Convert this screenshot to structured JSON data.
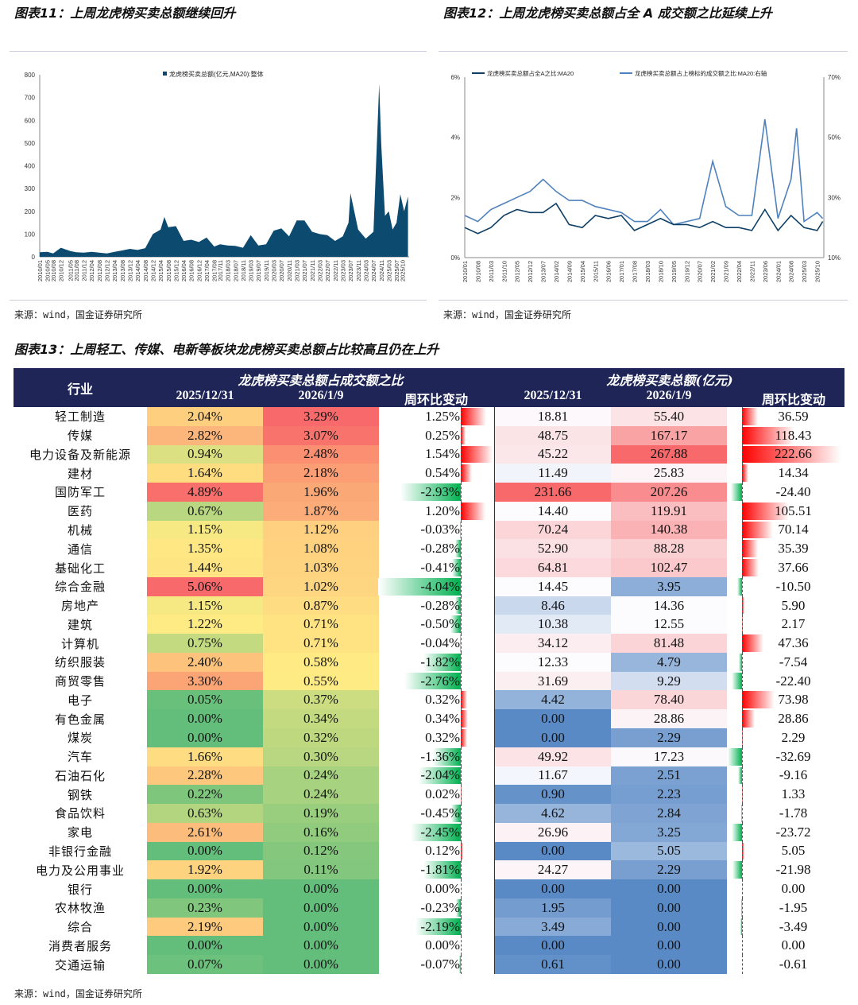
{
  "fig11": {
    "title": "图表11：上周龙虎榜买卖总额继续回升",
    "source": "来源：wind，国金证券研究所"
  },
  "fig12": {
    "title": "图表12：上周龙虎榜买卖总额占全 A 成交额之比延续上升",
    "source": "来源：wind，国金证券研究所"
  },
  "fig13": {
    "title": "图表13：上周轻工、传媒、电新等板块龙虎榜买卖总额占比较高且仍在上升",
    "source": "来源：wind，国金证券研究所"
  },
  "chart_data": [
    {
      "type": "area",
      "legend": "龙虎榜买卖总额(亿元,MA20):整体",
      "legend_position": "top-center",
      "color": "#0d4a70",
      "ylim": [
        0,
        800
      ],
      "yticks": [
        0,
        100,
        200,
        300,
        400,
        500,
        600,
        700,
        800
      ],
      "xticks": [
        "2010/01",
        "2010/05",
        "2010/08",
        "2010/12",
        "2011/05",
        "2011/08",
        "2011/12",
        "2012/04",
        "2012/08",
        "2012/12",
        "2013/04",
        "2013/08",
        "2013/12",
        "2014/04",
        "2014/08",
        "2014/12",
        "2015/04",
        "2015/08",
        "2015/12",
        "2016/04",
        "2016/08",
        "2016/12",
        "2017/04",
        "2017/08",
        "2017/11",
        "2018/03",
        "2018/07",
        "2018/11",
        "2019/03",
        "2019/07",
        "2019/11",
        "2020/03",
        "2020/07",
        "2020/11",
        "2021/03",
        "2021/07",
        "2021/11",
        "2022/03",
        "2022/07",
        "2022/11",
        "2023/03",
        "2023/07",
        "2023/11",
        "2024/03",
        "2024/07",
        "2024/11",
        "2025/03",
        "2025/07",
        "2025/10"
      ],
      "x": [
        "2010/01",
        "2010/05",
        "2010/08",
        "2010/12",
        "2011/05",
        "2011/08",
        "2011/12",
        "2012/04",
        "2012/08",
        "2012/12",
        "2013/04",
        "2013/08",
        "2013/12",
        "2014/04",
        "2014/08",
        "2014/12",
        "2015/04",
        "2015/06",
        "2015/08",
        "2015/12",
        "2016/04",
        "2016/08",
        "2016/12",
        "2017/04",
        "2017/08",
        "2017/11",
        "2018/03",
        "2018/07",
        "2018/11",
        "2019/03",
        "2019/07",
        "2019/11",
        "2020/03",
        "2020/07",
        "2020/11",
        "2021/03",
        "2021/07",
        "2021/11",
        "2022/03",
        "2022/07",
        "2022/11",
        "2023/03",
        "2023/06",
        "2023/07",
        "2023/11",
        "2024/03",
        "2024/07",
        "2024/10",
        "2024/11",
        "2025/01",
        "2025/03",
        "2025/05",
        "2025/07",
        "2025/09",
        "2025/11",
        "2026/01"
      ],
      "y": [
        20,
        22,
        15,
        40,
        25,
        20,
        18,
        22,
        18,
        15,
        22,
        28,
        35,
        30,
        38,
        100,
        120,
        175,
        130,
        135,
        70,
        75,
        65,
        85,
        45,
        55,
        50,
        48,
        40,
        95,
        50,
        55,
        115,
        125,
        90,
        160,
        160,
        110,
        100,
        95,
        70,
        90,
        150,
        280,
        120,
        80,
        110,
        760,
        500,
        180,
        200,
        120,
        150,
        275,
        200,
        265
      ]
    },
    {
      "type": "line",
      "legend_position": "top",
      "grid": false,
      "ylim_left": [
        0,
        6
      ],
      "yticks_left": [
        "0%",
        "2%",
        "4%",
        "6%"
      ],
      "ylim_right": [
        10,
        70
      ],
      "yticks_right": [
        "10%",
        "30%",
        "50%",
        "70%"
      ],
      "xticks": [
        "2010/01",
        "2010/08",
        "2011/03",
        "2011/10",
        "2012/05",
        "2012/12",
        "2013/07",
        "2014/02",
        "2014/09",
        "2015/04",
        "2015/11",
        "2016/06",
        "2017/01",
        "2017/08",
        "2018/03",
        "2018/10",
        "2019/05",
        "2019/12",
        "2020/07",
        "2021/02",
        "2021/09",
        "2022/04",
        "2022/11",
        "2023/06",
        "2024/01",
        "2024/08",
        "2025/03",
        "2025/10"
      ],
      "series": [
        {
          "name": "龙虎榜买卖总额占全A之比:MA20",
          "axis": "left",
          "color": "#0d3f66",
          "x": [
            "2010/01",
            "2010/08",
            "2011/03",
            "2011/10",
            "2012/05",
            "2012/12",
            "2013/07",
            "2014/02",
            "2014/09",
            "2015/04",
            "2015/11",
            "2016/06",
            "2017/01",
            "2017/08",
            "2018/03",
            "2018/10",
            "2019/05",
            "2019/12",
            "2020/07",
            "2021/02",
            "2021/09",
            "2022/04",
            "2022/11",
            "2023/06",
            "2024/01",
            "2024/08",
            "2025/03",
            "2025/10",
            "2026/01"
          ],
          "y": [
            1.0,
            0.8,
            1.0,
            1.4,
            1.6,
            1.5,
            1.5,
            1.8,
            1.1,
            1.0,
            1.4,
            1.3,
            1.4,
            0.9,
            1.1,
            1.3,
            1.1,
            1.1,
            1.0,
            1.2,
            1.0,
            1.0,
            0.9,
            1.6,
            0.9,
            1.4,
            1.0,
            0.9,
            1.2
          ]
        },
        {
          "name": "龙虎榜买卖总额占上榜标的成交额之比:MA20:右轴",
          "axis": "right",
          "color": "#4f81bd",
          "x": [
            "2010/01",
            "2010/08",
            "2011/03",
            "2011/10",
            "2012/05",
            "2012/12",
            "2013/07",
            "2014/02",
            "2014/09",
            "2015/04",
            "2015/11",
            "2016/06",
            "2017/01",
            "2017/08",
            "2018/03",
            "2018/10",
            "2019/05",
            "2019/12",
            "2020/07",
            "2021/02",
            "2021/09",
            "2022/04",
            "2022/11",
            "2023/06",
            "2024/01",
            "2024/08",
            "2024/11",
            "2025/03",
            "2025/10",
            "2026/01"
          ],
          "y": [
            24,
            22,
            26,
            28,
            30,
            32,
            36,
            32,
            29,
            29,
            27,
            26,
            25,
            22,
            22,
            26,
            21,
            22,
            23,
            42,
            27,
            24,
            24,
            56,
            23,
            36,
            53,
            22,
            25,
            23
          ]
        }
      ]
    }
  ],
  "table": {
    "col_industry": "行业",
    "group1": "龙虎榜买卖总额占成交额之比",
    "group2": "龙虎榜买卖总额(亿元)",
    "date1": "2025/12/31",
    "date2": "2026/1/9",
    "change": "周环比变动",
    "colors": {
      "header_bg": "#1f2657",
      "red": "#f8696b",
      "yellow": "#ffeb84",
      "green": "#63be7b",
      "blue": "#5a8ac6",
      "white": "#fcfcff",
      "bar_pos": "#ff0000",
      "bar_neg": "#00b050"
    },
    "rows": [
      [
        "轻工制造",
        "2.04%",
        "3.29%",
        "1.25%",
        "18.81",
        "55.40",
        "36.59"
      ],
      [
        "传媒",
        "2.82%",
        "3.07%",
        "0.25%",
        "48.75",
        "167.17",
        "118.43"
      ],
      [
        "电力设备及新能源",
        "0.94%",
        "2.48%",
        "1.54%",
        "45.22",
        "267.88",
        "222.66"
      ],
      [
        "建材",
        "1.64%",
        "2.18%",
        "0.54%",
        "11.49",
        "25.83",
        "14.34"
      ],
      [
        "国防军工",
        "4.89%",
        "1.96%",
        "-2.93%",
        "231.66",
        "207.26",
        "-24.40"
      ],
      [
        "医药",
        "0.67%",
        "1.87%",
        "1.20%",
        "14.40",
        "119.91",
        "105.51"
      ],
      [
        "机械",
        "1.15%",
        "1.12%",
        "-0.03%",
        "70.24",
        "140.38",
        "70.14"
      ],
      [
        "通信",
        "1.35%",
        "1.08%",
        "-0.28%",
        "52.90",
        "88.28",
        "35.39"
      ],
      [
        "基础化工",
        "1.44%",
        "1.03%",
        "-0.41%",
        "64.81",
        "102.47",
        "37.66"
      ],
      [
        "综合金融",
        "5.06%",
        "1.02%",
        "-4.04%",
        "14.45",
        "3.95",
        "-10.50"
      ],
      [
        "房地产",
        "1.15%",
        "0.87%",
        "-0.28%",
        "8.46",
        "14.36",
        "5.90"
      ],
      [
        "建筑",
        "1.22%",
        "0.71%",
        "-0.50%",
        "10.38",
        "12.55",
        "2.17"
      ],
      [
        "计算机",
        "0.75%",
        "0.71%",
        "-0.04%",
        "34.12",
        "81.48",
        "47.36"
      ],
      [
        "纺织服装",
        "2.40%",
        "0.58%",
        "-1.82%",
        "12.33",
        "4.79",
        "-7.54"
      ],
      [
        "商贸零售",
        "3.30%",
        "0.55%",
        "-2.76%",
        "31.69",
        "9.29",
        "-22.40"
      ],
      [
        "电子",
        "0.05%",
        "0.37%",
        "0.32%",
        "4.42",
        "78.40",
        "73.98"
      ],
      [
        "有色金属",
        "0.00%",
        "0.34%",
        "0.34%",
        "0.00",
        "28.86",
        "28.86"
      ],
      [
        "煤炭",
        "0.00%",
        "0.32%",
        "0.32%",
        "0.00",
        "2.29",
        "2.29"
      ],
      [
        "汽车",
        "1.66%",
        "0.30%",
        "-1.36%",
        "49.92",
        "17.23",
        "-32.69"
      ],
      [
        "石油石化",
        "2.28%",
        "0.24%",
        "-2.04%",
        "11.67",
        "2.51",
        "-9.16"
      ],
      [
        "钢铁",
        "0.22%",
        "0.24%",
        "0.02%",
        "0.90",
        "2.23",
        "1.33"
      ],
      [
        "食品饮料",
        "0.63%",
        "0.19%",
        "-0.45%",
        "4.62",
        "2.84",
        "-1.78"
      ],
      [
        "家电",
        "2.61%",
        "0.16%",
        "-2.45%",
        "26.96",
        "3.25",
        "-23.72"
      ],
      [
        "非银行金融",
        "0.00%",
        "0.12%",
        "0.12%",
        "0.00",
        "5.05",
        "5.05"
      ],
      [
        "电力及公用事业",
        "1.92%",
        "0.11%",
        "-1.81%",
        "24.27",
        "2.29",
        "-21.98"
      ],
      [
        "银行",
        "0.00%",
        "0.00%",
        "0.00%",
        "0.00",
        "0.00",
        "0.00"
      ],
      [
        "农林牧渔",
        "0.23%",
        "0.00%",
        "-0.23%",
        "1.95",
        "0.00",
        "-1.95"
      ],
      [
        "综合",
        "2.19%",
        "0.00%",
        "-2.19%",
        "3.49",
        "0.00",
        "-3.49"
      ],
      [
        "消费者服务",
        "0.00%",
        "0.00%",
        "0.00%",
        "0.00",
        "0.00",
        "0.00"
      ],
      [
        "交通运输",
        "0.07%",
        "0.00%",
        "-0.07%",
        "0.61",
        "0.00",
        "-0.61"
      ]
    ]
  }
}
